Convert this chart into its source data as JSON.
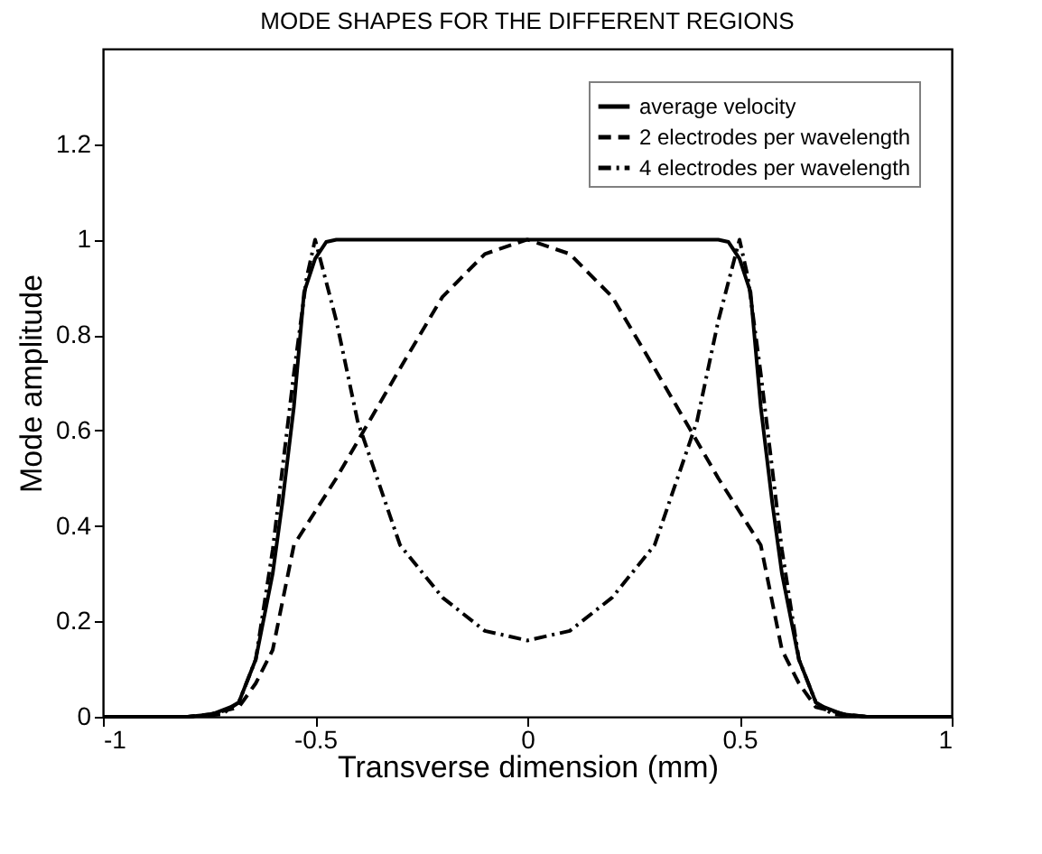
{
  "chart_data": {
    "type": "line",
    "title": "MODE SHAPES FOR THE DIFFERENT REGIONS",
    "xlabel": "Transverse dimension (mm)",
    "ylabel": "Mode amplitude",
    "xlim": [
      -1,
      1
    ],
    "xticks": [
      -1,
      -0.5,
      0,
      0.5,
      1
    ],
    "ylim": [
      0,
      1.4
    ],
    "yticks": [
      0,
      0.2,
      0.4,
      0.6,
      0.8,
      1,
      1.2
    ],
    "grid": false,
    "legend": "top right",
    "marker": "none",
    "series": [
      {
        "name": "average velocity",
        "color": "#000000",
        "line_style": "solid",
        "x": [
          -1,
          -0.8,
          -0.744,
          -0.7,
          -0.68,
          -0.64,
          -0.6,
          -0.577,
          -0.55,
          -0.526,
          -0.5,
          -0.474,
          -0.45,
          0,
          0.45,
          0.474,
          0.5,
          0.526,
          0.55,
          0.577,
          0.6,
          0.64,
          0.68,
          0.7,
          0.744,
          0.8,
          1
        ],
        "values": [
          0,
          0,
          0.005,
          0.02,
          0.03,
          0.12,
          0.3,
          0.45,
          0.65,
          0.89,
          0.96,
          0.995,
          1,
          1,
          1,
          0.995,
          0.96,
          0.89,
          0.65,
          0.45,
          0.3,
          0.12,
          0.03,
          0.02,
          0.005,
          0,
          0
        ]
      },
      {
        "name": "2 electrodes per wavelength",
        "color": "#000000",
        "line_style": "dashed",
        "x": [
          -1,
          -0.8,
          -0.75,
          -0.68,
          -0.64,
          -0.6,
          -0.55,
          -0.5,
          -0.45,
          -0.385,
          -0.3,
          -0.2,
          -0.1,
          0,
          0.1,
          0.2,
          0.3,
          0.385,
          0.45,
          0.5,
          0.55,
          0.6,
          0.64,
          0.68,
          0.75,
          0.8,
          1
        ],
        "values": [
          0,
          0,
          0.005,
          0.02,
          0.07,
          0.14,
          0.36,
          0.43,
          0.5,
          0.6,
          0.73,
          0.88,
          0.97,
          1,
          0.97,
          0.88,
          0.73,
          0.6,
          0.5,
          0.43,
          0.36,
          0.14,
          0.07,
          0.02,
          0.005,
          0,
          0
        ]
      },
      {
        "name": "4 electrodes per wavelength",
        "color": "#000000",
        "line_style": "dashdot",
        "x": [
          -1,
          -0.8,
          -0.72,
          -0.68,
          -0.64,
          -0.6,
          -0.55,
          -0.52,
          -0.5,
          -0.45,
          -0.4,
          -0.3,
          -0.2,
          -0.1,
          0,
          0.1,
          0.2,
          0.3,
          0.4,
          0.45,
          0.5,
          0.52,
          0.55,
          0.6,
          0.64,
          0.68,
          0.72,
          0.8,
          1
        ],
        "values": [
          0,
          0,
          0.005,
          0.03,
          0.12,
          0.35,
          0.72,
          0.92,
          1,
          0.83,
          0.62,
          0.36,
          0.25,
          0.18,
          0.16,
          0.18,
          0.25,
          0.36,
          0.62,
          0.83,
          1,
          0.92,
          0.72,
          0.35,
          0.12,
          0.03,
          0.005,
          0,
          0
        ]
      }
    ]
  }
}
